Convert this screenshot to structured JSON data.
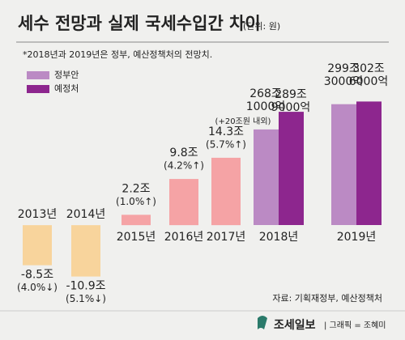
{
  "chart_data": {
    "type": "bar",
    "title": "세수 전망과 실제 국세수입간 차이",
    "unit": "(단위: 원)",
    "note": "*2018년과 2019년은 정부, 예산정책처의 전망치.",
    "source": "자료: 기획재정부, 예산정책처",
    "brand": "조세일보",
    "credit": "| 그래픽 = 조혜미",
    "difference": {
      "categories": [
        "2013년",
        "2014년",
        "2015년",
        "2016년",
        "2017년"
      ],
      "values": [
        -8.5,
        -10.9,
        2.2,
        9.8,
        14.3
      ],
      "value_labels": [
        "-8.5조",
        "-10.9조",
        "2.2조",
        "9.8조",
        "14.3조"
      ],
      "pct_labels": [
        "(4.0%↓)",
        "(5.1%↓)",
        "(1.0%↑)",
        "(4.2%↑)",
        "(5.7%↑)"
      ],
      "colors": [
        "#f8d49c",
        "#f8d49c",
        "#f5a3a5",
        "#f5a3a5",
        "#f5a3a5"
      ],
      "ylim": [
        -12,
        16
      ]
    },
    "forecast": {
      "categories": [
        "2018년",
        "2019년"
      ],
      "series": [
        {
          "name": "정부안",
          "color": "#bb8ac4",
          "values": [
            268.1,
            299.3
          ],
          "value_labels": [
            "268조 1000억",
            "299조 3000억"
          ]
        },
        {
          "name": "예정처",
          "color": "#8d268e",
          "values": [
            289.9,
            302.6
          ],
          "value_labels": [
            "289조 9000억",
            "302조 6000억"
          ]
        }
      ],
      "annotation": "(+20조원 내외)",
      "ylim": [
        150,
        310
      ]
    }
  }
}
